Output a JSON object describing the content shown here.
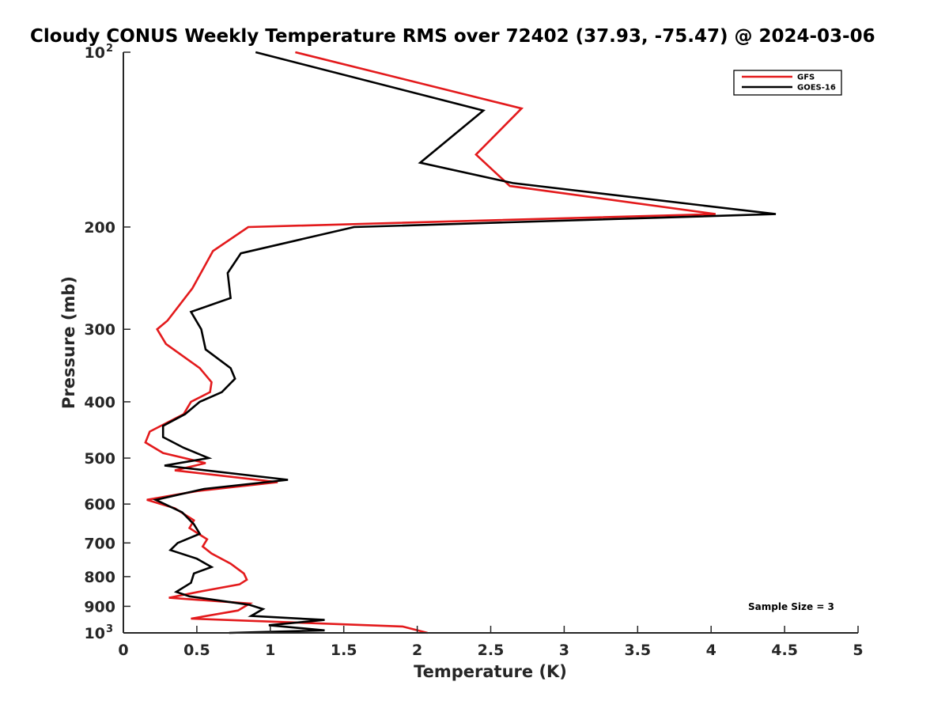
{
  "chart_data": {
    "type": "line",
    "title": "Cloudy CONUS Weekly Temperature RMS over 72402 (37.93, -75.47) @ 2024-03-06",
    "xlabel": "Temperature (K)",
    "ylabel": "Pressure (mb)",
    "xlim": [
      0,
      5
    ],
    "ylim": [
      100,
      1000
    ],
    "y_scale": "log",
    "y_reversed": true,
    "grid": false,
    "legend_position": "top-right",
    "annotation": "Sample Size = 3",
    "x_ticks": [
      "0",
      "0.5",
      "1",
      "1.5",
      "2",
      "2.5",
      "3",
      "3.5",
      "4",
      "4.5",
      "5"
    ],
    "y_ticks": [
      {
        "value": 100,
        "base": "10",
        "exp": "2"
      },
      {
        "value": 200,
        "label": "200"
      },
      {
        "value": 300,
        "label": "300"
      },
      {
        "value": 400,
        "label": "400"
      },
      {
        "value": 500,
        "label": "500"
      },
      {
        "value": 600,
        "label": "600"
      },
      {
        "value": 700,
        "label": "700"
      },
      {
        "value": 800,
        "label": "800"
      },
      {
        "value": 900,
        "label": "900"
      },
      {
        "value": 1000,
        "base": "10",
        "exp": "3"
      }
    ],
    "series": [
      {
        "name": "GFS",
        "color": "#e31a1c",
        "points": [
          [
            1.17,
            100
          ],
          [
            2.71,
            125
          ],
          [
            2.4,
            150
          ],
          [
            2.63,
            170
          ],
          [
            4.03,
            190
          ],
          [
            0.85,
            200
          ],
          [
            0.61,
            220
          ],
          [
            0.47,
            255
          ],
          [
            0.3,
            290
          ],
          [
            0.23,
            300
          ],
          [
            0.29,
            318
          ],
          [
            0.52,
            350
          ],
          [
            0.6,
            370
          ],
          [
            0.59,
            385
          ],
          [
            0.46,
            400
          ],
          [
            0.41,
            420
          ],
          [
            0.18,
            450
          ],
          [
            0.15,
            470
          ],
          [
            0.27,
            490
          ],
          [
            0.56,
            510
          ],
          [
            0.35,
            525
          ],
          [
            1.05,
            550
          ],
          [
            0.5,
            570
          ],
          [
            0.16,
            590
          ],
          [
            0.35,
            610
          ],
          [
            0.48,
            640
          ],
          [
            0.45,
            660
          ],
          [
            0.57,
            690
          ],
          [
            0.54,
            710
          ],
          [
            0.6,
            730
          ],
          [
            0.73,
            760
          ],
          [
            0.82,
            790
          ],
          [
            0.84,
            810
          ],
          [
            0.79,
            825
          ],
          [
            0.51,
            850
          ],
          [
            0.31,
            870
          ],
          [
            0.86,
            890
          ],
          [
            0.78,
            915
          ],
          [
            0.46,
            945
          ],
          [
            1.9,
            975
          ],
          [
            2.07,
            1000
          ]
        ]
      },
      {
        "name": "GOES-16",
        "color": "#000000",
        "points": [
          [
            0.9,
            100
          ],
          [
            2.45,
            126
          ],
          [
            2.02,
            155
          ],
          [
            2.65,
            168
          ],
          [
            4.44,
            190
          ],
          [
            1.57,
            200
          ],
          [
            0.8,
            222
          ],
          [
            0.71,
            240
          ],
          [
            0.73,
            265
          ],
          [
            0.46,
            280
          ],
          [
            0.53,
            300
          ],
          [
            0.56,
            325
          ],
          [
            0.73,
            350
          ],
          [
            0.76,
            365
          ],
          [
            0.67,
            385
          ],
          [
            0.52,
            400
          ],
          [
            0.42,
            420
          ],
          [
            0.27,
            440
          ],
          [
            0.27,
            460
          ],
          [
            0.41,
            480
          ],
          [
            0.58,
            500
          ],
          [
            0.28,
            515
          ],
          [
            1.12,
            545
          ],
          [
            0.55,
            565
          ],
          [
            0.22,
            590
          ],
          [
            0.4,
            620
          ],
          [
            0.48,
            650
          ],
          [
            0.52,
            675
          ],
          [
            0.37,
            700
          ],
          [
            0.32,
            720
          ],
          [
            0.5,
            745
          ],
          [
            0.6,
            770
          ],
          [
            0.48,
            790
          ],
          [
            0.46,
            820
          ],
          [
            0.36,
            850
          ],
          [
            0.45,
            865
          ],
          [
            0.86,
            895
          ],
          [
            0.95,
            910
          ],
          [
            0.87,
            935
          ],
          [
            1.37,
            950
          ],
          [
            0.99,
            970
          ],
          [
            1.37,
            990
          ],
          [
            0.72,
            1000
          ]
        ]
      }
    ]
  }
}
